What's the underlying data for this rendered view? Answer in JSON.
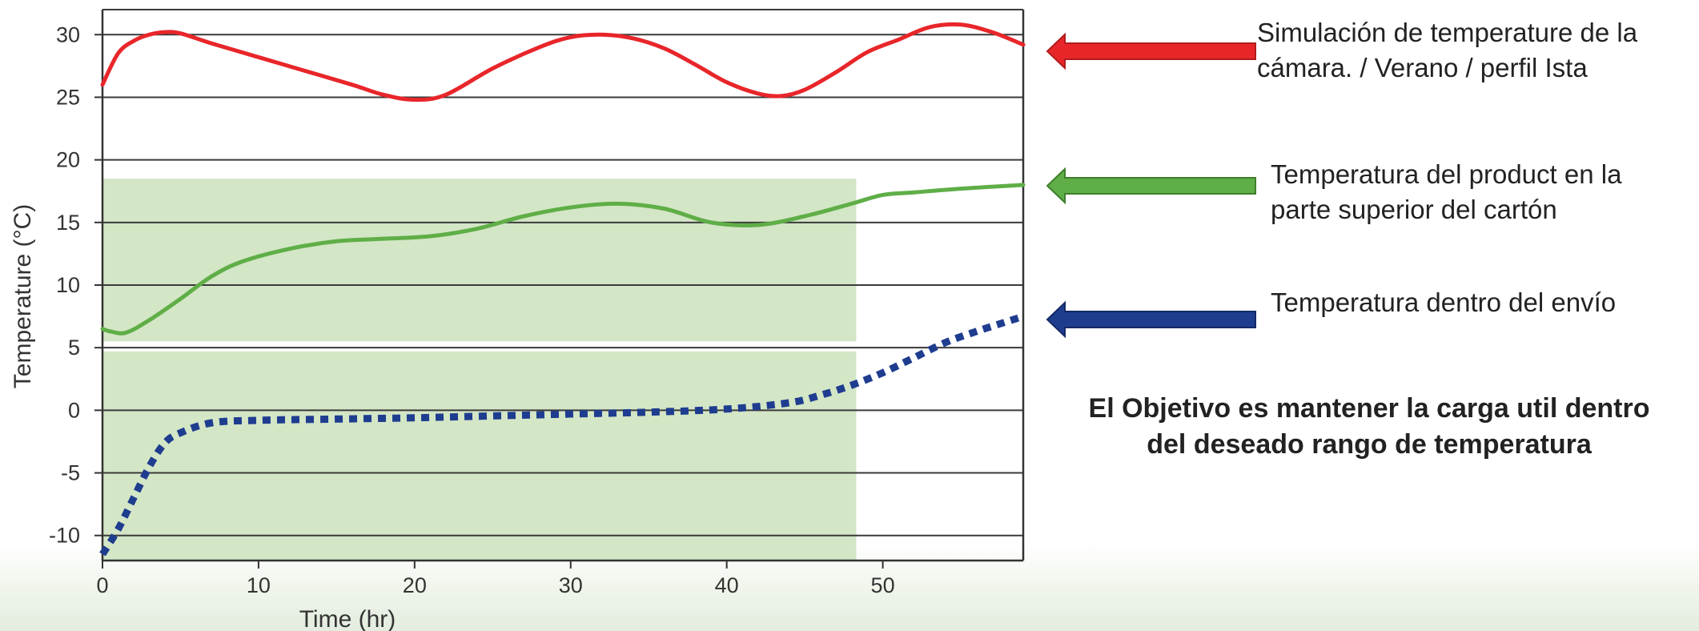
{
  "chart_data": {
    "type": "line",
    "xlabel": "Time (hr)",
    "ylabel": "Temperature (°C)",
    "xlim": [
      0,
      59
    ],
    "ylim": [
      -12,
      32
    ],
    "xticks": [
      0,
      10,
      20,
      30,
      40,
      50
    ],
    "yticks": [
      30,
      25,
      20,
      15,
      10,
      5,
      0,
      -5,
      -10
    ],
    "grid": "horizontal",
    "bands": [
      {
        "x": [
          0,
          48.3
        ],
        "y": [
          5.5,
          18.5
        ],
        "color": "#d3e6c6"
      },
      {
        "x": [
          0,
          48.3
        ],
        "y": [
          -12,
          4.7
        ],
        "color": "#d3e6c6"
      }
    ],
    "series": [
      {
        "color": "#e8262a",
        "style": "solid",
        "x": [
          0,
          1,
          2,
          3,
          4,
          5,
          7,
          10,
          13,
          16,
          18,
          20,
          22,
          25,
          28,
          30,
          32,
          34,
          36,
          38,
          40,
          42,
          43.5,
          45,
          47,
          49,
          51,
          53,
          55,
          57,
          59
        ],
        "y": [
          26,
          28.5,
          29.5,
          30,
          30.2,
          30.1,
          29.3,
          28.2,
          27.1,
          26,
          25.2,
          24.8,
          25.2,
          27.3,
          29,
          29.8,
          30,
          29.7,
          28.9,
          27.6,
          26.2,
          25.3,
          25.1,
          25.6,
          27,
          28.6,
          29.6,
          30.6,
          30.8,
          30.2,
          29.2
        ]
      },
      {
        "color": "#5fae47",
        "style": "solid",
        "x": [
          0,
          0.5,
          1.5,
          3,
          5,
          7,
          9,
          12,
          15,
          18,
          21,
          24,
          27,
          30,
          33,
          36,
          39,
          42,
          45,
          48,
          50,
          52,
          55,
          59
        ],
        "y": [
          6.5,
          6.3,
          6.2,
          7.2,
          8.9,
          10.7,
          11.9,
          12.9,
          13.5,
          13.7,
          13.9,
          14.5,
          15.5,
          16.2,
          16.5,
          16.1,
          15,
          14.8,
          15.5,
          16.5,
          17.2,
          17.4,
          17.7,
          18
        ]
      },
      {
        "color": "#1f3d8f",
        "style": "dotted",
        "x": [
          0,
          1,
          2,
          3,
          4,
          5,
          7,
          10,
          15,
          20,
          25,
          30,
          35,
          40,
          44,
          46,
          48,
          50,
          52,
          54,
          56,
          58,
          59
        ],
        "y": [
          -11.5,
          -9.5,
          -7,
          -4.5,
          -2.6,
          -1.8,
          -1.0,
          -0.8,
          -0.7,
          -0.6,
          -0.45,
          -0.3,
          -0.15,
          0.1,
          0.6,
          1.2,
          2.0,
          3.0,
          4.2,
          5.4,
          6.3,
          7.1,
          7.5
        ]
      }
    ]
  },
  "legend": {
    "red_label_line1": "Simulación de temperature de la",
    "red_label_line2": "cámara. / Verano / perfil Ista",
    "green_label_line1": "Temperatura del product en la",
    "green_label_line2": "parte superior del cartón",
    "blue_label": "Temperatura dentro del envío",
    "arrow_colors": {
      "red": "#e8262a",
      "green": "#5fae47",
      "blue": "#1f3d8f"
    }
  },
  "objective": {
    "line1": "El Objetivo es mantener la carga util dentro",
    "line2": "del deseado rango de temperatura"
  }
}
